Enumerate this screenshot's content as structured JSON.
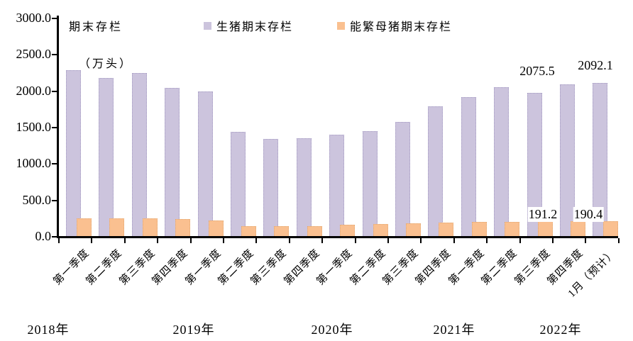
{
  "chart_data": {
    "type": "bar",
    "title": "期末存栏（万头）",
    "axis_title_line1": "期末存栏",
    "axis_title_line2": "（万头）",
    "unit": "万头",
    "legend_position": "top",
    "grid": false,
    "y_axis": {
      "min": 0,
      "max": 3000,
      "step": 500
    },
    "y_ticks": [
      "3000.0",
      "2500.0",
      "2000.0",
      "1500.0",
      "1000.0",
      "500.0",
      "0.0"
    ],
    "categories": [
      "第一季度",
      "第二季度",
      "第三季度",
      "第四季度",
      "第一季度",
      "第二季度",
      "第三季度",
      "第四季度",
      "第一季度",
      "第二季度",
      "第三季度",
      "第四季度",
      "第一季度",
      "第二季度",
      "第三季度",
      "第四季度",
      "1月（预计）"
    ],
    "year_labels": [
      "2018年",
      "2019年",
      "2020年",
      "2021年",
      "2022年"
    ],
    "series": [
      {
        "name": "生猪期末存栏",
        "color": "#CCC4DD",
        "values": [
          2265,
          2160,
          2230,
          2030,
          1980,
          1420,
          1320,
          1335,
          1385,
          1435,
          1560,
          1770,
          1900,
          2035,
          1960,
          2075.5,
          2092.1
        ]
      },
      {
        "name": "能繁母猪期末存栏",
        "color": "#FAC090",
        "values": [
          230,
          232,
          238,
          220,
          205,
          130,
          125,
          125,
          148,
          155,
          165,
          180,
          183,
          188,
          192,
          191.2,
          190.4
        ]
      }
    ],
    "annotations": [
      {
        "series": "生猪期末存栏",
        "category": "2021年第四季度",
        "text": "2075.5"
      },
      {
        "series": "生猪期末存栏",
        "category": "2022年1月（预计）",
        "text": "2092.1"
      },
      {
        "series": "能繁母猪期末存栏",
        "category": "2021年第四季度",
        "text": "191.2"
      },
      {
        "series": "能繁母猪期末存栏",
        "category": "2022年1月（预计）",
        "text": "190.4"
      }
    ]
  }
}
